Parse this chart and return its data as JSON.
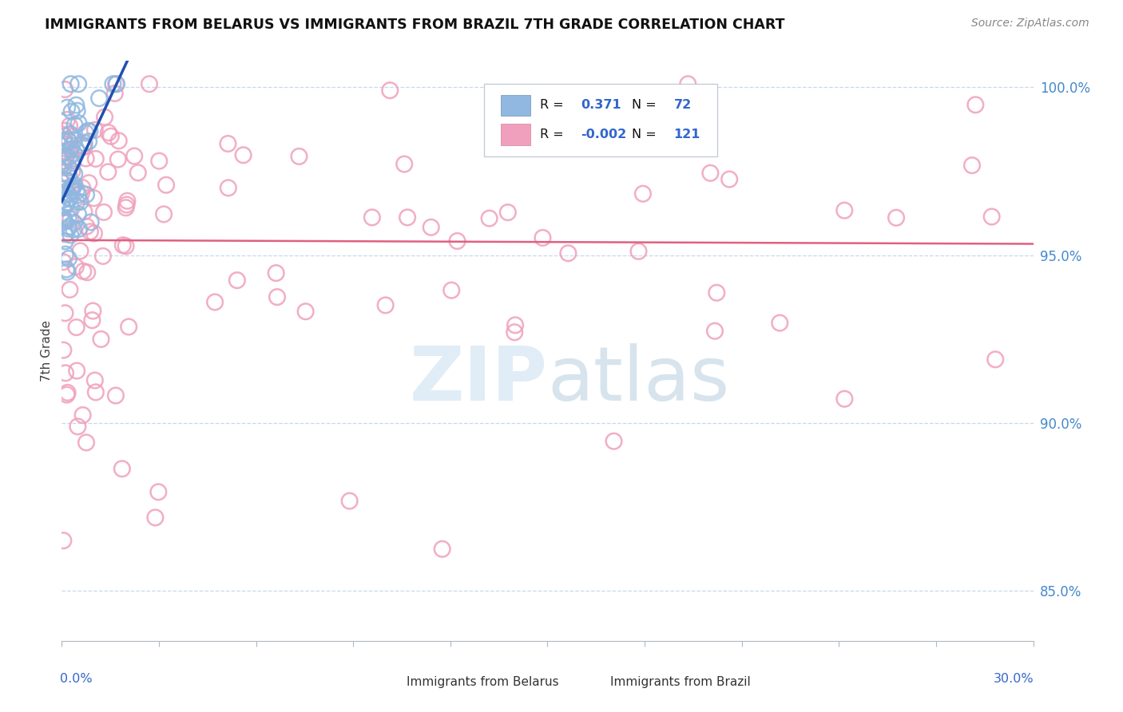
{
  "title": "IMMIGRANTS FROM BELARUS VS IMMIGRANTS FROM BRAZIL 7TH GRADE CORRELATION CHART",
  "source": "Source: ZipAtlas.com",
  "ylabel": "7th Grade",
  "xlim": [
    0.0,
    0.3
  ],
  "ylim": [
    0.835,
    1.008
  ],
  "yticks": [
    0.85,
    0.9,
    0.95,
    1.0
  ],
  "ytick_labels": [
    "85.0%",
    "90.0%",
    "95.0%",
    "100.0%"
  ],
  "trendline_belarus_color": "#2050b0",
  "trendline_brazil_color": "#e06080",
  "scatter_belarus_color": "#90b8e0",
  "scatter_brazil_color": "#f0a0bc",
  "grid_color": "#c8d8ec",
  "top_dotted_color": "#b0c8e0"
}
